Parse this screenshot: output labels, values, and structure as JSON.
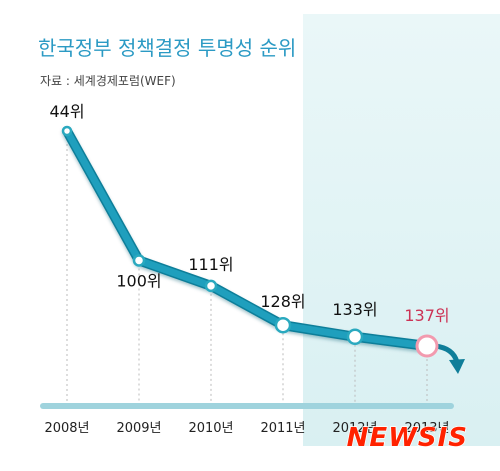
{
  "title": "한국정부 정책결정 투명성 순위",
  "source": "자료 : 세계경제포럼(WEF)",
  "watermark": "NEWSIS",
  "colors": {
    "title": "#2b9ac4",
    "line": "#1f9fbd",
    "line_dark": "#0f7e99",
    "highlight_panel": "#e1f3f5",
    "highlight_label": "#cc3355",
    "highlight_marker": "#f29aae",
    "marker_stroke": "#2aa9bf",
    "axis_bar": "#9fd3dd",
    "watermark": "#ff2200"
  },
  "chart_data": {
    "type": "line",
    "title": "한국정부 정책결정 투명성 순위",
    "xlabel": "",
    "ylabel": "",
    "categories": [
      "2008년",
      "2009년",
      "2010년",
      "2011년",
      "2012년",
      "2013년"
    ],
    "series": [
      {
        "values": [
          44,
          100,
          111,
          128,
          133,
          137
        ]
      }
    ],
    "data_labels": [
      "44위",
      "100위",
      "111위",
      "128위",
      "133위",
      "137위"
    ],
    "highlight_index": 5,
    "y_inverted": true,
    "ylim": [
      44,
      137
    ],
    "grid": false,
    "legend": "none"
  }
}
